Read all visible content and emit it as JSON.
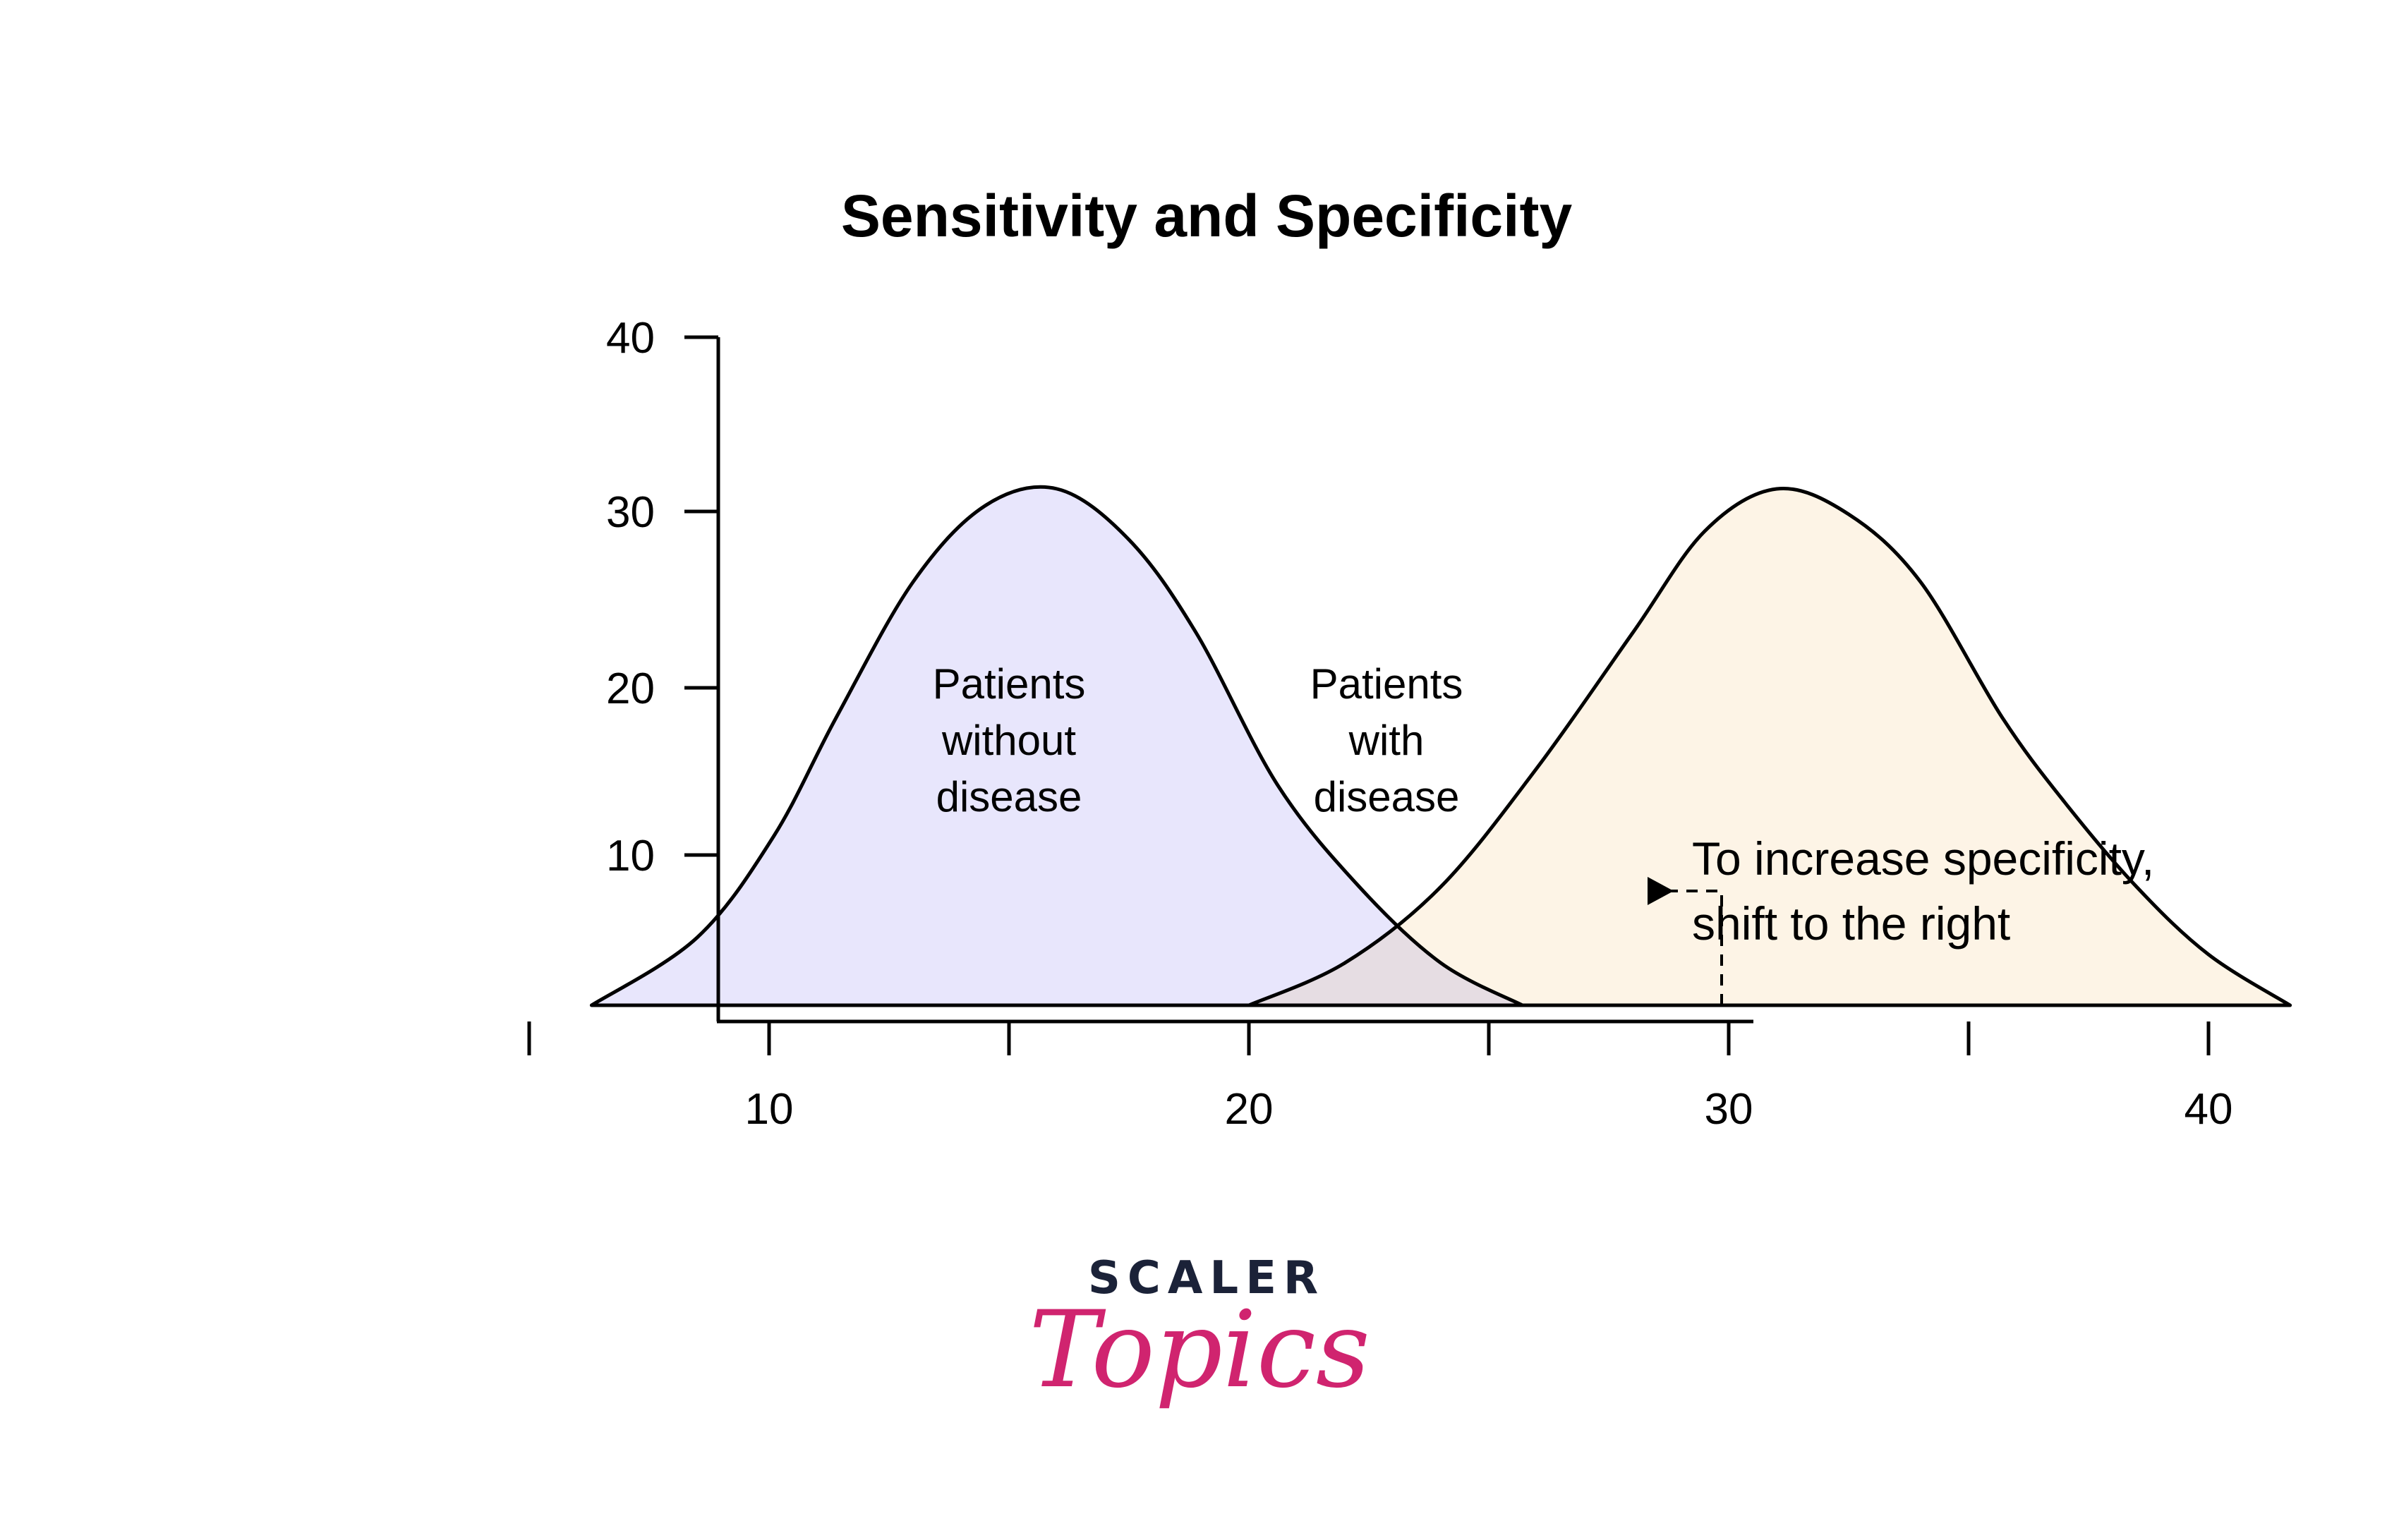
{
  "chart_data": {
    "type": "area",
    "title": "Sensitivity and Specificity",
    "xlabel": "",
    "ylabel": "",
    "xlim": [
      5,
      45
    ],
    "ylim": [
      0,
      40
    ],
    "x_ticks": [
      5,
      10,
      15,
      20,
      25,
      30,
      35,
      40,
      45
    ],
    "x_tick_labels": [
      "10",
      "20",
      "30",
      "40"
    ],
    "x_tick_label_values": [
      10,
      20,
      30,
      40
    ],
    "y_ticks": [
      10,
      20,
      30,
      40
    ],
    "y_tick_labels": [
      "10",
      "20",
      "30",
      "40"
    ],
    "grid": false,
    "series": [
      {
        "label_lines": [
          "Patients",
          "without",
          "disease"
        ],
        "color": "#e8e6fc",
        "x": [
          6.3,
          8.5,
          10.1,
          11.4,
          13.0,
          14.5,
          16.0,
          17.5,
          18.9,
          20.6,
          22.3,
          24.0,
          25.7
        ],
        "y": [
          0,
          4,
          10,
          17,
          25,
          29.5,
          30.5,
          27.5,
          22,
          13,
          7,
          2.5,
          0
        ]
      },
      {
        "label_lines": [
          "Patients",
          "with",
          "disease"
        ],
        "color": "#fdf4e6",
        "x": [
          20.0,
          22.0,
          24.0,
          26.0,
          28.0,
          29.5,
          31.0,
          32.5,
          34.0,
          35.7,
          37.0,
          38.5,
          40.0,
          41.7
        ],
        "y": [
          0,
          2.5,
          7,
          14,
          22,
          28,
          30.5,
          29,
          25,
          17,
          12,
          7,
          3,
          0
        ]
      }
    ],
    "overlap_color": "#e6dde3",
    "annotation": {
      "lines": [
        "To increase specificity,",
        "shift to the right"
      ],
      "threshold_x": 30,
      "arrow_y": 7
    }
  },
  "logo": {
    "line1": "SCALER",
    "line2": "Topics"
  },
  "colors": {
    "axis": "#000000",
    "logo_dark": "#1b2238",
    "logo_pink": "#d0246f"
  }
}
